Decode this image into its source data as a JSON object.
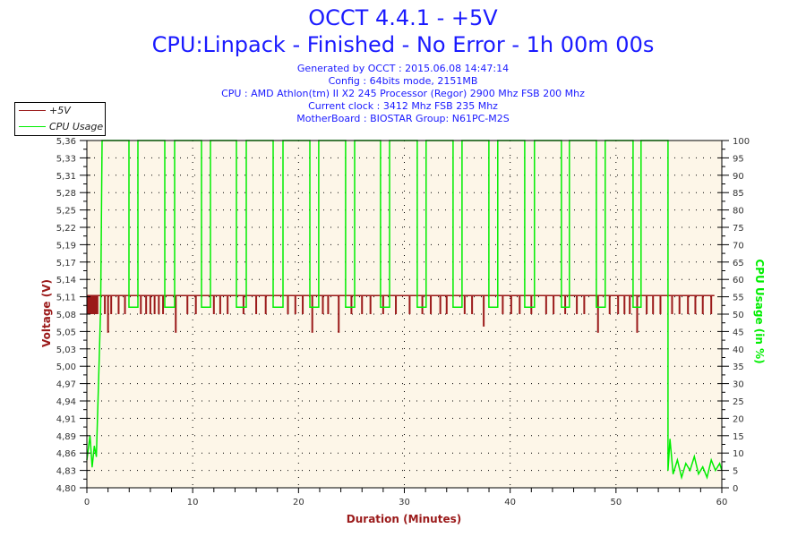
{
  "header": {
    "title": "OCCT 4.4.1 - +5V",
    "subtitle": "CPU:Linpack - Finished - No Error - 1h 00m 00s",
    "info": [
      "Generated by OCCT : 2015.06.08 14:47:14",
      "Config : 64bits mode, 2151MB",
      "CPU : AMD Athlon(tm) II X2 245 Processor (Regor) 2900 Mhz FSB 200 Mhz",
      "Current clock : 3412 Mhz FSB 235 Mhz",
      "MotherBoard : BIOSTAR Group: N61PC-M2S"
    ]
  },
  "chart_data": {
    "type": "line",
    "xlabel": "Duration (Minutes)",
    "ylabel_left": "Voltage (V)",
    "ylabel_right": "CPU Usage (in %)",
    "xlim": [
      0,
      60
    ],
    "x_ticks": [
      "0",
      "10",
      "20",
      "30",
      "40",
      "50",
      "60"
    ],
    "ylim_left": [
      4.8,
      5.36
    ],
    "y_ticks_left": [
      "5,36",
      "5,33",
      "5,31",
      "5,28",
      "5,25",
      "5,22",
      "5,19",
      "5,17",
      "5,14",
      "5,11",
      "5,08",
      "5,05",
      "5,03",
      "5,00",
      "4,97",
      "4,94",
      "4,91",
      "4,89",
      "4,86",
      "4,83",
      "4,80"
    ],
    "ylim_right": [
      0,
      100
    ],
    "y_ticks_right": [
      "100",
      "95",
      "90",
      "85",
      "80",
      "75",
      "70",
      "65",
      "60",
      "55",
      "50",
      "45",
      "40",
      "35",
      "30",
      "25",
      "20",
      "15",
      "10",
      "5",
      "0"
    ],
    "grid": true,
    "legend_position": "top-left",
    "colors": {
      "voltage": "#9b1a1a",
      "cpu": "#00ee00",
      "plot_bg": "#fdf6e8"
    },
    "series": [
      {
        "name": "+5V",
        "axis": "left",
        "baseline": 5.11,
        "baseline_range": [
          0,
          59.3
        ],
        "dips": [
          [
            0.1,
            5.08
          ],
          [
            0.2,
            5.08
          ],
          [
            0.3,
            5.08
          ],
          [
            0.4,
            5.08
          ],
          [
            0.5,
            5.08
          ],
          [
            0.6,
            5.08
          ],
          [
            0.7,
            5.08
          ],
          [
            0.8,
            5.08
          ],
          [
            0.9,
            5.08
          ],
          [
            1.0,
            5.08
          ],
          [
            1.7,
            5.08
          ],
          [
            2.0,
            5.05
          ],
          [
            2.3,
            5.08
          ],
          [
            3.0,
            5.08
          ],
          [
            3.6,
            5.08
          ],
          [
            5.1,
            5.08
          ],
          [
            5.6,
            5.08
          ],
          [
            6.0,
            5.08
          ],
          [
            6.4,
            5.08
          ],
          [
            6.8,
            5.08
          ],
          [
            7.2,
            5.08
          ],
          [
            8.4,
            5.05
          ],
          [
            9.5,
            5.08
          ],
          [
            10.3,
            5.08
          ],
          [
            12.0,
            5.08
          ],
          [
            12.6,
            5.08
          ],
          [
            13.3,
            5.08
          ],
          [
            14.8,
            5.08
          ],
          [
            16.0,
            5.08
          ],
          [
            16.9,
            5.08
          ],
          [
            19.0,
            5.08
          ],
          [
            19.7,
            5.08
          ],
          [
            20.4,
            5.08
          ],
          [
            21.3,
            5.05
          ],
          [
            22.3,
            5.08
          ],
          [
            22.8,
            5.08
          ],
          [
            23.8,
            5.05
          ],
          [
            25.0,
            5.08
          ],
          [
            26.0,
            5.08
          ],
          [
            26.8,
            5.08
          ],
          [
            28.0,
            5.08
          ],
          [
            29.2,
            5.08
          ],
          [
            30.5,
            5.08
          ],
          [
            31.7,
            5.08
          ],
          [
            32.5,
            5.08
          ],
          [
            33.4,
            5.08
          ],
          [
            34.0,
            5.08
          ],
          [
            35.7,
            5.08
          ],
          [
            36.4,
            5.08
          ],
          [
            37.5,
            5.06
          ],
          [
            39.3,
            5.08
          ],
          [
            40.1,
            5.08
          ],
          [
            40.9,
            5.08
          ],
          [
            42.0,
            5.08
          ],
          [
            43.4,
            5.08
          ],
          [
            44.1,
            5.08
          ],
          [
            45.2,
            5.08
          ],
          [
            46.3,
            5.08
          ],
          [
            47.0,
            5.08
          ],
          [
            48.3,
            5.05
          ],
          [
            49.4,
            5.08
          ],
          [
            50.2,
            5.08
          ],
          [
            50.8,
            5.08
          ],
          [
            51.3,
            5.08
          ],
          [
            52.0,
            5.05
          ],
          [
            52.9,
            5.08
          ],
          [
            53.5,
            5.08
          ],
          [
            54.2,
            5.08
          ],
          [
            55.3,
            5.08
          ],
          [
            56.0,
            5.08
          ],
          [
            56.8,
            5.08
          ],
          [
            57.5,
            5.08
          ],
          [
            58.2,
            5.08
          ],
          [
            59.0,
            5.08
          ]
        ]
      },
      {
        "name": "CPU Usage",
        "axis": "right",
        "x": [
          0,
          0.3,
          0.5,
          0.7,
          0.9,
          1.1,
          1.3,
          1.44,
          3.98,
          3.98,
          4.82,
          4.82,
          7.36,
          7.36,
          8.29,
          8.29,
          10.83,
          10.83,
          11.68,
          11.68,
          14.13,
          14.13,
          15.06,
          15.06,
          17.6,
          17.6,
          18.53,
          18.53,
          21.07,
          21.07,
          21.91,
          21.91,
          24.45,
          24.45,
          25.3,
          25.3,
          27.75,
          27.75,
          28.6,
          28.6,
          31.22,
          31.22,
          32.06,
          32.06,
          34.6,
          34.6,
          35.45,
          35.45,
          37.99,
          37.99,
          38.83,
          38.83,
          41.37,
          41.37,
          42.3,
          42.3,
          44.84,
          44.84,
          45.6,
          45.6,
          48.14,
          48.14,
          48.98,
          48.98,
          51.61,
          51.61,
          52.37,
          52.37,
          54.91,
          54.91,
          55.1,
          55.4,
          55.8,
          56.2,
          56.6,
          57.0,
          57.4,
          57.8,
          58.2,
          58.6,
          59.0,
          59.4,
          59.8,
          60
        ],
        "y": [
          8,
          15,
          6,
          12,
          9,
          30,
          52,
          100,
          100,
          52,
          52,
          100,
          100,
          52,
          52,
          100,
          100,
          52,
          52,
          100,
          100,
          52,
          52,
          100,
          100,
          52,
          52,
          100,
          100,
          52,
          52,
          100,
          100,
          52,
          52,
          100,
          100,
          52,
          52,
          100,
          100,
          52,
          52,
          100,
          100,
          52,
          52,
          100,
          100,
          52,
          52,
          100,
          100,
          52,
          52,
          100,
          100,
          52,
          52,
          100,
          100,
          52,
          52,
          100,
          100,
          52,
          52,
          100,
          100,
          5,
          14,
          4,
          8,
          3,
          7,
          5,
          9,
          4,
          6,
          3,
          8,
          5,
          7,
          5
        ]
      }
    ]
  }
}
